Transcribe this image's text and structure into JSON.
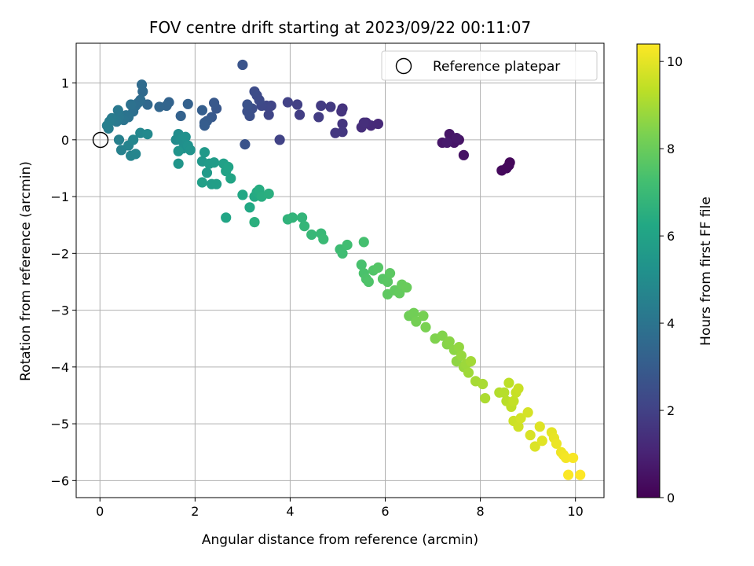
{
  "chart_data": {
    "type": "scatter",
    "title": "FOV centre drift starting at 2023/09/22 00:11:07",
    "xlabel": "Angular distance from reference (arcmin)",
    "ylabel": "Rotation from reference (arcmin)",
    "xlim": [
      -0.5,
      10.6
    ],
    "ylim": [
      -6.3,
      1.7
    ],
    "xticks": [
      "0",
      "2",
      "4",
      "6",
      "8",
      "10"
    ],
    "yticks": [
      "−6",
      "−5",
      "−4",
      "−3",
      "−2",
      "−1",
      "0",
      "1"
    ],
    "grid": true,
    "legend": {
      "placement": "top-right",
      "entries": [
        "Reference platepar"
      ]
    },
    "reference_point": {
      "x": 0,
      "y": 0
    },
    "colorbar": {
      "label": "Hours from first FF file",
      "range": [
        0,
        10.4
      ],
      "ticks": [
        "0",
        "2",
        "4",
        "6",
        "8",
        "10"
      ],
      "colormap": "viridis"
    },
    "points": [
      [
        8.6,
        -0.45,
        0.2
      ],
      [
        8.62,
        -0.4,
        0.2
      ],
      [
        8.45,
        -0.54,
        0.25
      ],
      [
        8.55,
        -0.5,
        0.25
      ],
      [
        7.65,
        -0.27,
        0.5
      ],
      [
        7.55,
        0.0,
        0.55
      ],
      [
        7.45,
        -0.05,
        0.6
      ],
      [
        7.35,
        0.1,
        0.6
      ],
      [
        7.2,
        -0.05,
        0.65
      ],
      [
        7.5,
        0.03,
        0.7
      ],
      [
        7.3,
        -0.05,
        0.75
      ],
      [
        5.85,
        0.28,
        1.2
      ],
      [
        5.7,
        0.25,
        1.25
      ],
      [
        5.6,
        0.3,
        1.3
      ],
      [
        5.5,
        0.22,
        1.35
      ],
      [
        5.55,
        0.3,
        1.4
      ],
      [
        5.1,
        0.55,
        1.5
      ],
      [
        5.08,
        0.5,
        1.55
      ],
      [
        5.1,
        0.28,
        1.6
      ],
      [
        5.1,
        0.14,
        1.65
      ],
      [
        4.95,
        0.12,
        1.7
      ],
      [
        4.85,
        0.58,
        1.75
      ],
      [
        4.65,
        0.6,
        1.8
      ],
      [
        4.6,
        0.4,
        1.85
      ],
      [
        4.2,
        0.44,
        1.9
      ],
      [
        4.15,
        0.62,
        1.95
      ],
      [
        3.95,
        0.66,
        2.0
      ],
      [
        3.78,
        0.0,
        2.05
      ],
      [
        3.6,
        0.6,
        2.1
      ],
      [
        3.55,
        0.44,
        2.15
      ],
      [
        3.5,
        0.6,
        2.2
      ],
      [
        3.4,
        0.6,
        2.25
      ],
      [
        3.35,
        0.7,
        2.3
      ],
      [
        3.3,
        0.78,
        2.35
      ],
      [
        3.25,
        0.85,
        2.4
      ],
      [
        3.2,
        0.55,
        2.45
      ],
      [
        3.15,
        0.42,
        2.5
      ],
      [
        3.1,
        0.5,
        2.55
      ],
      [
        3.1,
        0.62,
        2.6
      ],
      [
        3.05,
        -0.08,
        2.65
      ],
      [
        3.0,
        1.32,
        2.7
      ],
      [
        2.45,
        0.55,
        2.8
      ],
      [
        2.4,
        0.65,
        2.85
      ],
      [
        2.35,
        0.4,
        2.9
      ],
      [
        2.25,
        0.33,
        2.95
      ],
      [
        2.2,
        0.3,
        3.0
      ],
      [
        2.2,
        0.25,
        3.05
      ],
      [
        2.15,
        0.52,
        3.1
      ],
      [
        1.85,
        0.63,
        3.2
      ],
      [
        1.7,
        0.42,
        3.25
      ],
      [
        1.45,
        0.66,
        3.3
      ],
      [
        1.4,
        0.6,
        3.35
      ],
      [
        1.25,
        0.58,
        3.4
      ],
      [
        1.0,
        0.62,
        3.5
      ],
      [
        0.9,
        0.85,
        3.55
      ],
      [
        0.88,
        0.97,
        3.6
      ],
      [
        0.85,
        0.7,
        3.65
      ],
      [
        0.8,
        0.65,
        3.7
      ],
      [
        0.75,
        0.6,
        3.75
      ],
      [
        0.7,
        0.5,
        3.8
      ],
      [
        0.65,
        0.62,
        3.85
      ],
      [
        0.6,
        0.4,
        3.9
      ],
      [
        0.55,
        0.43,
        3.95
      ],
      [
        0.5,
        0.35,
        4.0
      ],
      [
        0.45,
        0.38,
        4.05
      ],
      [
        0.4,
        0.4,
        4.1
      ],
      [
        0.38,
        0.52,
        4.15
      ],
      [
        0.35,
        0.32,
        4.2
      ],
      [
        0.3,
        0.36,
        4.25
      ],
      [
        0.25,
        0.38,
        4.3
      ],
      [
        0.2,
        0.32,
        4.35
      ],
      [
        0.18,
        0.2,
        4.4
      ],
      [
        0.15,
        0.25,
        4.45
      ],
      [
        0.4,
        0.0,
        4.5
      ],
      [
        0.45,
        -0.18,
        4.55
      ],
      [
        0.6,
        -0.1,
        4.6
      ],
      [
        0.65,
        -0.28,
        4.65
      ],
      [
        0.75,
        -0.25,
        4.7
      ],
      [
        0.7,
        0.0,
        4.75
      ],
      [
        0.85,
        0.12,
        4.8
      ],
      [
        1.0,
        0.1,
        4.85
      ],
      [
        1.6,
        0.0,
        5.0
      ],
      [
        1.65,
        0.1,
        5.05
      ],
      [
        1.7,
        0.0,
        5.1
      ],
      [
        1.75,
        -0.15,
        5.15
      ],
      [
        1.8,
        0.05,
        5.2
      ],
      [
        1.85,
        -0.1,
        5.25
      ],
      [
        1.9,
        -0.18,
        5.3
      ],
      [
        1.65,
        -0.2,
        5.35
      ],
      [
        1.65,
        -0.42,
        5.4
      ],
      [
        2.15,
        -0.38,
        5.5
      ],
      [
        2.2,
        -0.22,
        5.55
      ],
      [
        2.25,
        -0.58,
        5.6
      ],
      [
        2.3,
        -0.42,
        5.65
      ],
      [
        2.4,
        -0.4,
        5.7
      ],
      [
        2.35,
        -0.78,
        5.75
      ],
      [
        2.45,
        -0.78,
        5.8
      ],
      [
        2.15,
        -0.75,
        5.85
      ],
      [
        2.6,
        -0.42,
        5.9
      ],
      [
        2.65,
        -0.55,
        5.95
      ],
      [
        2.7,
        -0.48,
        6.0
      ],
      [
        2.75,
        -0.68,
        6.05
      ],
      [
        2.65,
        -1.37,
        6.1
      ],
      [
        3.0,
        -0.97,
        6.2
      ],
      [
        3.15,
        -1.19,
        6.25
      ],
      [
        3.25,
        -1.0,
        6.3
      ],
      [
        3.3,
        -0.92,
        6.35
      ],
      [
        3.35,
        -0.88,
        6.4
      ],
      [
        3.4,
        -1.0,
        6.45
      ],
      [
        3.55,
        -0.95,
        6.5
      ],
      [
        3.25,
        -1.45,
        6.55
      ],
      [
        3.95,
        -1.4,
        6.7
      ],
      [
        4.05,
        -1.37,
        6.75
      ],
      [
        4.25,
        -1.37,
        6.8
      ],
      [
        4.3,
        -1.52,
        6.85
      ],
      [
        4.45,
        -1.67,
        6.9
      ],
      [
        4.65,
        -1.65,
        6.95
      ],
      [
        4.7,
        -1.75,
        7.0
      ],
      [
        5.05,
        -1.93,
        7.1
      ],
      [
        5.1,
        -2.0,
        7.15
      ],
      [
        5.2,
        -1.85,
        7.2
      ],
      [
        5.55,
        -1.8,
        7.3
      ],
      [
        5.5,
        -2.2,
        7.35
      ],
      [
        5.55,
        -2.35,
        7.4
      ],
      [
        5.6,
        -2.45,
        7.45
      ],
      [
        5.65,
        -2.5,
        7.5
      ],
      [
        5.75,
        -2.3,
        7.55
      ],
      [
        5.85,
        -2.25,
        7.6
      ],
      [
        5.95,
        -2.45,
        7.65
      ],
      [
        6.05,
        -2.5,
        7.7
      ],
      [
        6.1,
        -2.35,
        7.75
      ],
      [
        6.05,
        -2.72,
        7.8
      ],
      [
        6.2,
        -2.65,
        7.85
      ],
      [
        6.3,
        -2.7,
        7.9
      ],
      [
        6.35,
        -2.55,
        7.95
      ],
      [
        6.45,
        -2.6,
        8.0
      ],
      [
        6.5,
        -3.1,
        8.1
      ],
      [
        6.6,
        -3.05,
        8.15
      ],
      [
        6.65,
        -3.2,
        8.2
      ],
      [
        6.8,
        -3.1,
        8.25
      ],
      [
        6.85,
        -3.3,
        8.3
      ],
      [
        7.05,
        -3.5,
        8.4
      ],
      [
        7.2,
        -3.45,
        8.45
      ],
      [
        7.3,
        -3.6,
        8.5
      ],
      [
        7.35,
        -3.55,
        8.55
      ],
      [
        7.45,
        -3.7,
        8.6
      ],
      [
        7.5,
        -3.9,
        8.65
      ],
      [
        7.55,
        -3.65,
        8.7
      ],
      [
        7.6,
        -3.8,
        8.75
      ],
      [
        7.65,
        -4.0,
        8.8
      ],
      [
        7.7,
        -3.95,
        8.85
      ],
      [
        7.75,
        -4.1,
        8.9
      ],
      [
        7.8,
        -3.9,
        8.95
      ],
      [
        7.9,
        -4.25,
        9.0
      ],
      [
        8.05,
        -4.3,
        9.05
      ],
      [
        8.1,
        -4.55,
        9.1
      ],
      [
        8.4,
        -4.45,
        9.2
      ],
      [
        8.5,
        -4.45,
        9.25
      ],
      [
        8.55,
        -4.6,
        9.3
      ],
      [
        8.6,
        -4.28,
        9.35
      ],
      [
        8.65,
        -4.7,
        9.4
      ],
      [
        8.7,
        -4.6,
        9.45
      ],
      [
        8.75,
        -4.45,
        9.5
      ],
      [
        8.8,
        -4.38,
        9.55
      ],
      [
        8.7,
        -4.95,
        9.6
      ],
      [
        8.8,
        -5.05,
        9.65
      ],
      [
        8.85,
        -4.9,
        9.7
      ],
      [
        9.0,
        -4.8,
        9.75
      ],
      [
        9.05,
        -5.2,
        9.8
      ],
      [
        9.15,
        -5.4,
        9.85
      ],
      [
        9.25,
        -5.05,
        9.9
      ],
      [
        9.3,
        -5.3,
        9.95
      ],
      [
        9.5,
        -5.15,
        10.0
      ],
      [
        9.55,
        -5.25,
        10.05
      ],
      [
        9.6,
        -5.35,
        10.1
      ],
      [
        9.7,
        -5.5,
        10.15
      ],
      [
        9.75,
        -5.55,
        10.2
      ],
      [
        9.8,
        -5.6,
        10.25
      ],
      [
        9.95,
        -5.6,
        10.3
      ],
      [
        9.85,
        -5.9,
        10.35
      ],
      [
        10.1,
        -5.9,
        10.4
      ]
    ]
  }
}
